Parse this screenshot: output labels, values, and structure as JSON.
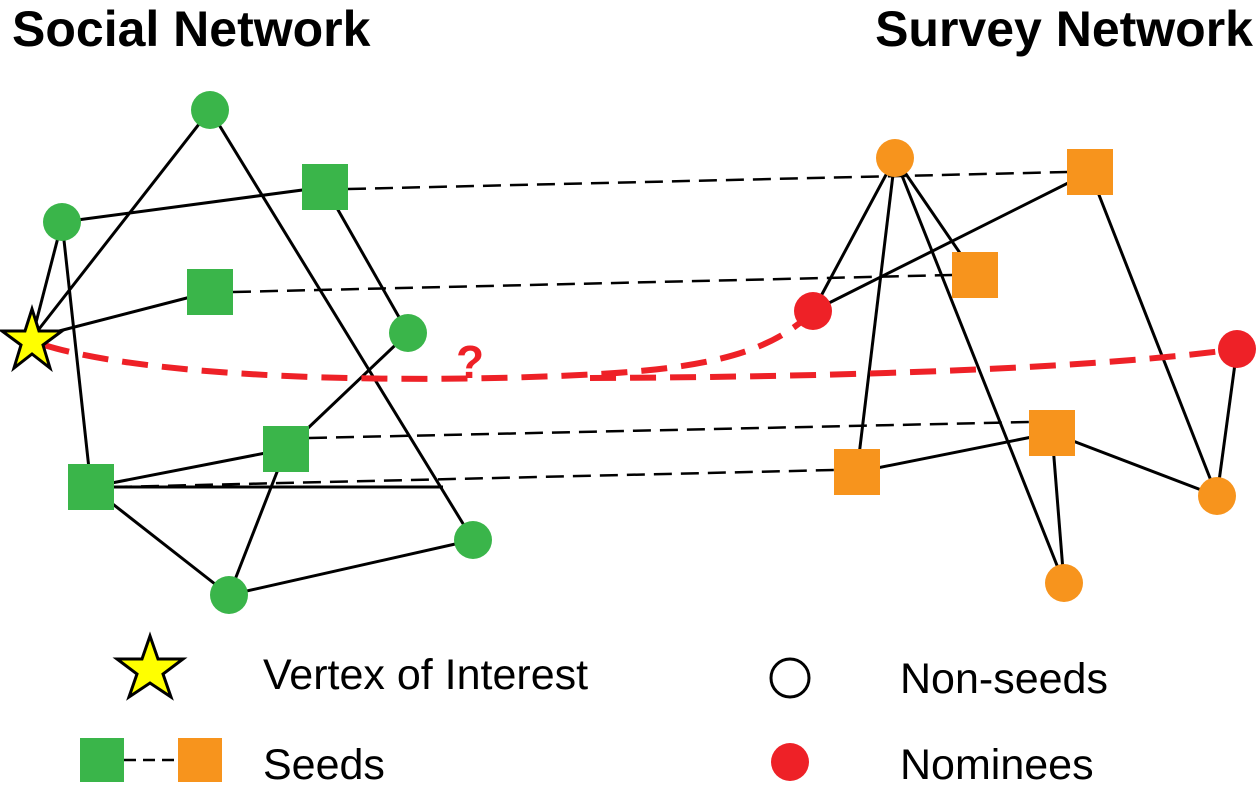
{
  "titles": {
    "left": "Social Network",
    "right": "Survey Network"
  },
  "legend": {
    "vertex_of_interest": "Vertex of Interest",
    "seeds": "Seeds",
    "non_seeds": "Non-seeds",
    "nominees": "Nominees"
  },
  "unknown_link_label": "?",
  "colors": {
    "social": "#3ab54a",
    "survey": "#f7941d",
    "nominee": "#ee2127",
    "star": "#ffff00",
    "edge": "#000000"
  },
  "icons": {
    "vertex_of_interest": "star-icon",
    "seed_social": "green-square-icon",
    "seed_survey": "orange-square-icon",
    "non_seed": "circle-outline-icon",
    "nominee": "red-circle-icon"
  }
}
